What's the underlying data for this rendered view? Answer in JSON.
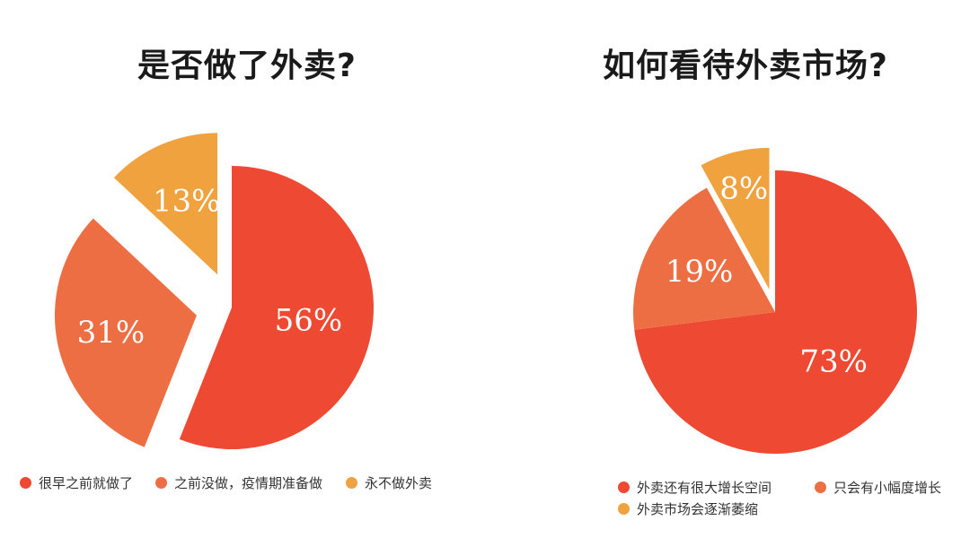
{
  "colors": {
    "red": "#EE4A33",
    "orange": "#EE6E44",
    "yellow": "#F0A23F",
    "label": "#FFFFFF"
  },
  "chart_data": [
    {
      "type": "pie",
      "title": "是否做了外卖?",
      "slices": [
        {
          "label": "很早之前就做了",
          "value": 56,
          "text": "56%",
          "color": "#EE4A33"
        },
        {
          "label": "之前没做，疫情期准备做",
          "value": 31,
          "text": "31%",
          "color": "#EE6E44",
          "exploded": true
        },
        {
          "label": "永不做外卖",
          "value": 13,
          "text": "13%",
          "color": "#F0A23F",
          "exploded": true
        }
      ],
      "legend_position": "bottom"
    },
    {
      "type": "pie",
      "title": "如何看待外卖市场?",
      "slices": [
        {
          "label": "外卖还有很大增长空间",
          "value": 73,
          "text": "73%",
          "color": "#EE4A33"
        },
        {
          "label": "只会有小幅度增长",
          "value": 19,
          "text": "19%",
          "color": "#EE6E44"
        },
        {
          "label": "外卖市场会逐渐萎缩",
          "value": 8,
          "text": "8%",
          "color": "#F0A23F",
          "exploded": true
        }
      ],
      "legend_position": "bottom"
    }
  ]
}
